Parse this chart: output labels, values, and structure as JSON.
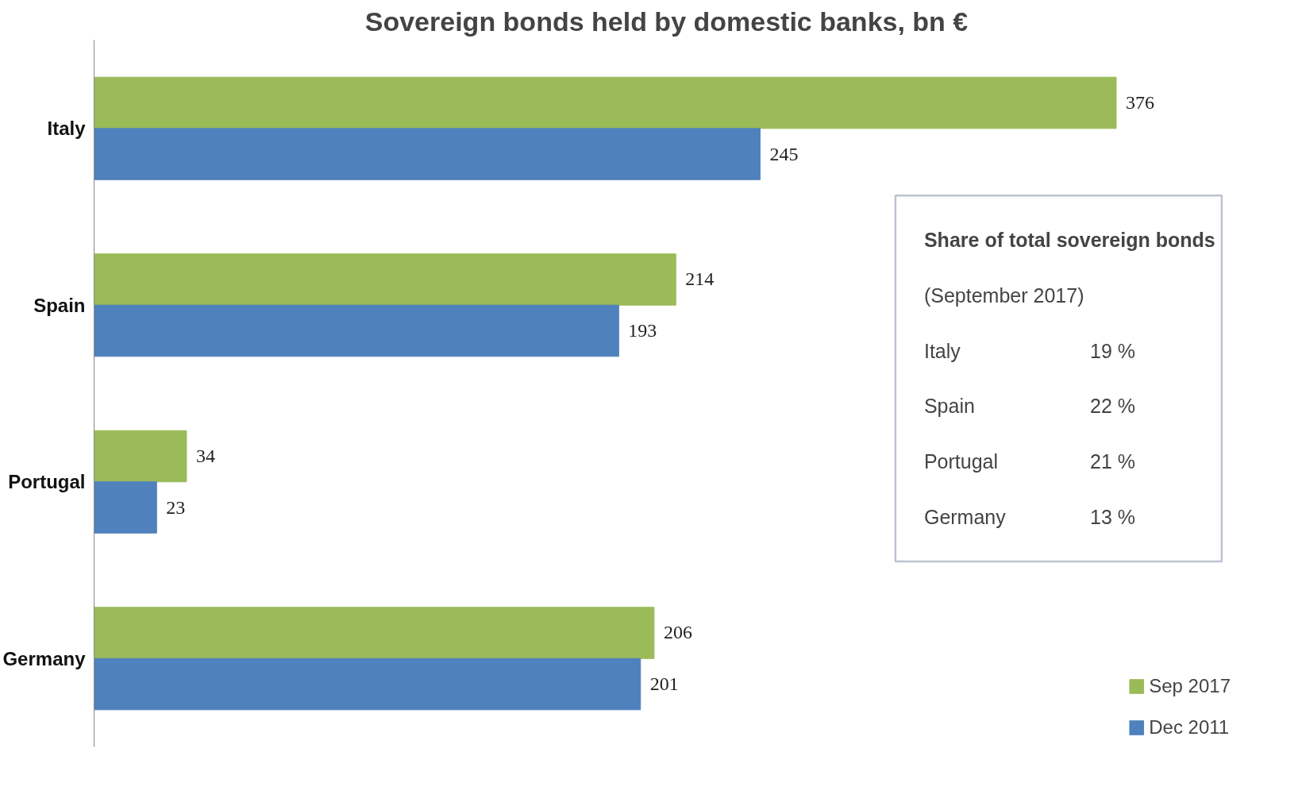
{
  "chart_data": {
    "type": "bar",
    "orientation": "horizontal",
    "title": "Sovereign bonds held by domestic banks, bn €",
    "categories": [
      "Italy",
      "Spain",
      "Portugal",
      "Germany"
    ],
    "series": [
      {
        "name": "Sep 2017",
        "color": "#9bbb59",
        "values": [
          376,
          214,
          34,
          206
        ]
      },
      {
        "name": "Dec 2011",
        "color": "#4f81bd",
        "values": [
          245,
          193,
          23,
          201
        ]
      }
    ],
    "data_labels": true,
    "legend": "bottom right",
    "grid": false,
    "annotations": [
      "Share of total sovereign bonds",
      "(September 2017)",
      "Italy 19 %",
      "Spain 22 %",
      "Portugal 21 %",
      "Germany 13 %"
    ]
  }
}
